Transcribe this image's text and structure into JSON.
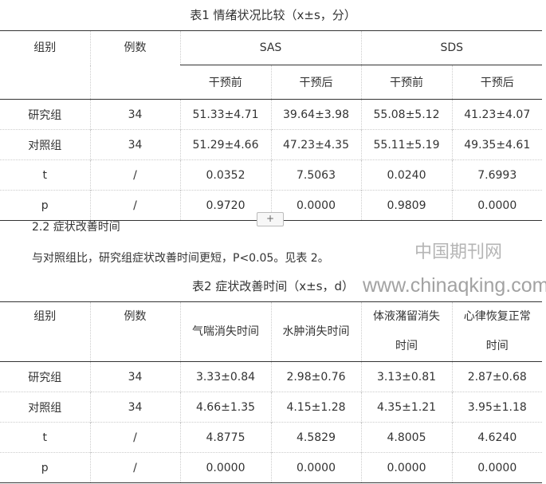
{
  "table1": {
    "caption": "表1 情绪状况比较（x±s，分）",
    "headers": {
      "group": "组别",
      "count": "例数",
      "sas": "SAS",
      "sds": "SDS",
      "sub": [
        "干预前",
        "干预后",
        "干预前",
        "干预后"
      ]
    },
    "rows": [
      [
        "研究组",
        "34",
        "51.33±4.71",
        "39.64±3.98",
        "55.08±5.12",
        "41.23±4.07"
      ],
      [
        "对照组",
        "34",
        "51.29±4.66",
        "47.23±4.35",
        "55.11±5.19",
        "49.35±4.61"
      ],
      [
        "t",
        "/",
        "0.0352",
        "7.5063",
        "0.0240",
        "7.6993"
      ],
      [
        "p",
        "/",
        "0.9720",
        "0.0000",
        "0.9809",
        "0.0000"
      ]
    ]
  },
  "add_button": "+",
  "section_heading": "2.2 症状改善时间",
  "paragraph": "与对照组比，研究组症状改善时间更短，P<0.05。见表 2。",
  "table2": {
    "caption": "表2 症状改善时间（x±s，d）",
    "headers": [
      "组别",
      "例数",
      "气喘消失时间",
      "水肿消失时间",
      "体液潴留消失时间",
      "心律恢复正常时间"
    ],
    "rows": [
      [
        "研究组",
        "34",
        "3.33±0.84",
        "2.98±0.76",
        "3.13±0.81",
        "2.87±0.68"
      ],
      [
        "对照组",
        "34",
        "4.66±1.35",
        "4.15±1.28",
        "4.35±1.21",
        "3.95±1.18"
      ],
      [
        "t",
        "/",
        "4.8775",
        "4.5829",
        "4.8005",
        "4.6240"
      ],
      [
        "p",
        "/",
        "0.0000",
        "0.0000",
        "0.0000",
        "0.0000"
      ]
    ]
  },
  "watermark": {
    "cn": "中国期刊网",
    "url": "www.chinaqking.com"
  }
}
